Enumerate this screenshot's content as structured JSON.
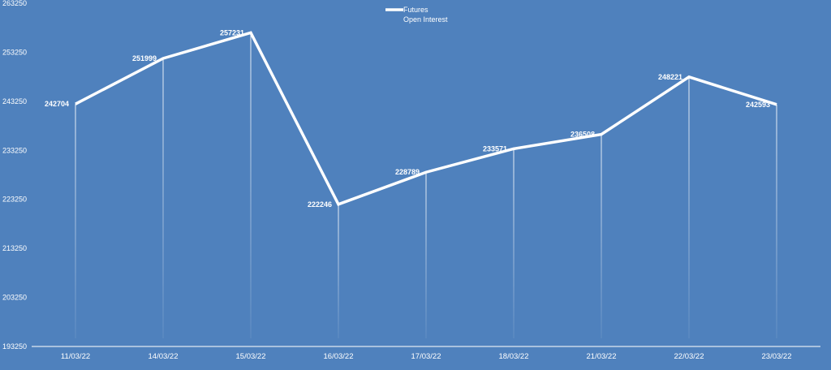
{
  "chart_data": {
    "type": "line",
    "title": "",
    "xlabel": "",
    "ylabel": "",
    "categories": [
      "11/03/22",
      "14/03/22",
      "15/03/22",
      "16/03/22",
      "17/03/22",
      "18/03/22",
      "21/03/22",
      "22/03/22",
      "23/03/22"
    ],
    "series": [
      {
        "name": "Futures Open Interest",
        "values": [
          242704,
          251999,
          257231,
          222246,
          228789,
          233571,
          236508,
          248221,
          242593
        ]
      }
    ],
    "data_labels": [
      "242704",
      "251999",
      "257231",
      "222246",
      "228789",
      "233571",
      "236508",
      "248221",
      "242593"
    ],
    "ylim": [
      193250,
      263250
    ],
    "yticks": [
      "193250",
      "203250",
      "213250",
      "223250",
      "233250",
      "243250",
      "253250",
      "263250"
    ],
    "legend": {
      "line1": "Futures",
      "line2": "Open Interest",
      "placement": "top-center"
    },
    "grid": false,
    "drop_lines": true,
    "colors": {
      "background": "#4f81bd",
      "line": "#ffffff"
    }
  }
}
